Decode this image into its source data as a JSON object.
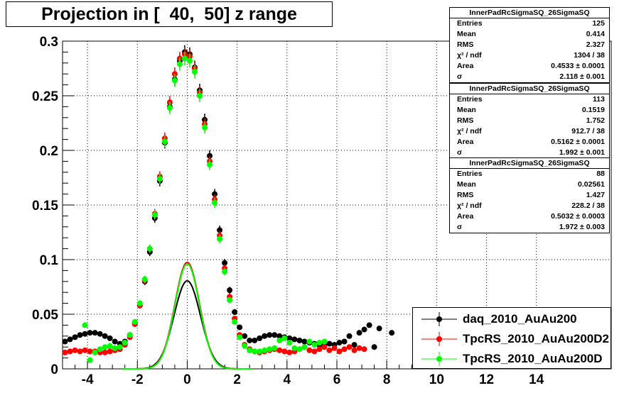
{
  "title": "Projection in [  40,  50] z range",
  "chart_data": {
    "type": "scatter",
    "title": "Projection in [  40,  50] z range",
    "xlim": [
      -5,
      17
    ],
    "ylim": [
      0,
      0.3
    ],
    "x_ticks": [
      "-4",
      "-2",
      "0",
      "2",
      "4",
      "6",
      "8",
      "10",
      "12",
      "14"
    ],
    "y_ticks": [
      "0",
      "0.05",
      "0.1",
      "0.15",
      "0.2",
      "0.25",
      "0.3"
    ],
    "grid": true,
    "legend_position": "bottom-right",
    "series": [
      {
        "name": "daq_2010_AuAu200",
        "color": "#000000",
        "x": [
          -4.9,
          -4.7,
          -4.5,
          -4.3,
          -4.1,
          -3.9,
          -3.7,
          -3.5,
          -3.3,
          -3.1,
          -2.9,
          -2.7,
          -2.5,
          -2.3,
          -2.1,
          -1.9,
          -1.7,
          -1.5,
          -1.3,
          -1.1,
          -0.9,
          -0.7,
          -0.5,
          -0.3,
          -0.1,
          0.1,
          0.3,
          0.5,
          0.7,
          0.9,
          1.1,
          1.3,
          1.5,
          1.7,
          1.9,
          2.1,
          2.3,
          2.5,
          2.7,
          2.9,
          3.1,
          3.3,
          3.5,
          3.7,
          3.9,
          4.1,
          4.3,
          4.5,
          4.7,
          4.9,
          5.1,
          5.3,
          5.5,
          5.7,
          5.9,
          6.1,
          6.3,
          6.5,
          6.7,
          6.9,
          7.1,
          7.3,
          7.5,
          7.7,
          8.2
        ],
        "y": [
          0.025,
          0.027,
          0.029,
          0.031,
          0.032,
          0.033,
          0.033,
          0.032,
          0.03,
          0.028,
          0.025,
          0.023,
          0.025,
          0.031,
          0.042,
          0.058,
          0.08,
          0.107,
          0.138,
          0.172,
          0.207,
          0.24,
          0.265,
          0.282,
          0.29,
          0.288,
          0.276,
          0.255,
          0.228,
          0.195,
          0.16,
          0.127,
          0.097,
          0.072,
          0.052,
          0.038,
          0.03,
          0.026,
          0.026,
          0.028,
          0.03,
          0.031,
          0.031,
          0.03,
          0.029,
          0.028,
          0.027,
          0.026,
          0.025,
          0.024,
          0.023,
          0.022,
          0.022,
          0.023,
          0.022,
          0.024,
          0.025,
          0.03,
          0.022,
          0.033,
          0.036,
          0.04,
          0.02,
          0.037,
          0.033
        ]
      },
      {
        "name": "TpcRS_2010_AuAu200D2",
        "color": "#ff0000",
        "x": [
          -4.9,
          -4.7,
          -4.5,
          -4.3,
          -4.1,
          -3.9,
          -3.7,
          -3.5,
          -3.3,
          -3.1,
          -2.9,
          -2.7,
          -2.5,
          -2.3,
          -2.1,
          -1.9,
          -1.7,
          -1.5,
          -1.3,
          -1.1,
          -0.9,
          -0.7,
          -0.5,
          -0.3,
          -0.1,
          0.1,
          0.3,
          0.5,
          0.7,
          0.9,
          1.1,
          1.3,
          1.5,
          1.7,
          1.9,
          2.1,
          2.3,
          2.5,
          2.7,
          2.9,
          3.1,
          3.3,
          3.5,
          3.7,
          3.9,
          4.1,
          4.3,
          4.5,
          4.7,
          4.9,
          5.1,
          5.3,
          5.5,
          5.7,
          5.9,
          6.1,
          6.3,
          6.5,
          6.7,
          6.9,
          7.1
        ],
        "y": [
          0.015,
          0.016,
          0.017,
          0.016,
          0.017,
          0.016,
          0.016,
          0.015,
          0.015,
          0.016,
          0.017,
          0.018,
          0.022,
          0.029,
          0.041,
          0.058,
          0.081,
          0.11,
          0.142,
          0.176,
          0.211,
          0.244,
          0.27,
          0.284,
          0.288,
          0.286,
          0.275,
          0.253,
          0.224,
          0.19,
          0.155,
          0.122,
          0.092,
          0.066,
          0.046,
          0.031,
          0.022,
          0.018,
          0.016,
          0.015,
          0.016,
          0.017,
          0.018,
          0.017,
          0.016,
          0.015,
          0.016,
          0.018,
          0.02,
          0.017,
          0.016,
          0.018,
          0.02,
          0.017,
          0.019,
          0.016,
          0.018,
          0.02,
          0.017,
          0.019,
          0.018
        ]
      },
      {
        "name": "TpcRS_2010_AuAu200D",
        "color": "#00ff00",
        "x": [
          -4.1,
          -3.9,
          -3.7,
          -3.5,
          -3.3,
          -3.1,
          -2.9,
          -2.7,
          -2.5,
          -2.3,
          -2.1,
          -1.9,
          -1.7,
          -1.5,
          -1.3,
          -1.1,
          -0.9,
          -0.7,
          -0.5,
          -0.3,
          -0.1,
          0.1,
          0.3,
          0.5,
          0.7,
          0.9,
          1.1,
          1.3,
          1.5,
          1.7,
          1.9,
          2.1,
          2.3,
          2.5,
          2.7,
          2.9,
          3.1,
          3.3,
          3.5,
          3.7,
          3.9,
          4.1,
          4.3,
          4.5,
          4.7,
          4.9,
          5.1,
          5.3,
          5.5
        ],
        "y": [
          0.04,
          0.008,
          0.015,
          0.018,
          0.02,
          0.021,
          0.019,
          0.02,
          0.024,
          0.031,
          0.043,
          0.06,
          0.082,
          0.11,
          0.141,
          0.174,
          0.208,
          0.239,
          0.264,
          0.279,
          0.284,
          0.282,
          0.272,
          0.25,
          0.221,
          0.187,
          0.152,
          0.119,
          0.089,
          0.063,
          0.043,
          0.029,
          0.021,
          0.017,
          0.016,
          0.016,
          0.017,
          0.018,
          0.019,
          0.026,
          0.028,
          0.024,
          0.019,
          0.018,
          0.02,
          0.025,
          0.022,
          0.024,
          0.025
        ]
      }
    ],
    "fits": [
      {
        "series": "daq_2010_AuAu200",
        "color": "#000000",
        "area": 0.4533,
        "sigma": 2.118
      },
      {
        "series": "TpcRS_2010_AuAu200D2",
        "color": "#ff0000",
        "area": 0.5162,
        "sigma": 1.992
      },
      {
        "series": "TpcRS_2010_AuAu200D",
        "color": "#00ff00",
        "area": 0.5032,
        "sigma": 1.972
      }
    ]
  },
  "stats": [
    {
      "title": "InnerPadRcSigmaSQ_26SigmaSQ",
      "rows": [
        {
          "k": "Entries",
          "v": "125"
        },
        {
          "k": "Mean",
          "v": "0.414"
        },
        {
          "k": "RMS",
          "v": "2.327"
        },
        {
          "k": "χ² / ndf",
          "v": "1304 / 38"
        },
        {
          "k": "Area",
          "v": "0.4533 ± 0.0001"
        },
        {
          "k": "σ",
          "v": "2.118 ± 0.001"
        }
      ]
    },
    {
      "title": "InnerPadRcSigmaSQ_26SigmaSQ",
      "rows": [
        {
          "k": "Entries",
          "v": "113"
        },
        {
          "k": "Mean",
          "v": "0.1519"
        },
        {
          "k": "RMS",
          "v": "1.752"
        },
        {
          "k": "χ² / ndf",
          "v": "912.7 / 38"
        },
        {
          "k": "Area",
          "v": "0.5162 ± 0.0001"
        },
        {
          "k": "σ",
          "v": "1.992 ± 0.001"
        }
      ]
    },
    {
      "title": "InnerPadRcSigmaSQ_26SigmaSQ",
      "rows": [
        {
          "k": "Entries",
          "v": "88"
        },
        {
          "k": "Mean",
          "v": "0.02561"
        },
        {
          "k": "RMS",
          "v": "1.427"
        },
        {
          "k": "χ² / ndf",
          "v": "228.2 / 38"
        },
        {
          "k": "Area",
          "v": "0.5032 ± 0.0003"
        },
        {
          "k": "σ",
          "v": "1.972 ± 0.003"
        }
      ]
    }
  ],
  "legend": [
    {
      "label": "daq_2010_AuAu200",
      "color": "#000000"
    },
    {
      "label": "TpcRS_2010_AuAu200D2",
      "color": "#ff0000"
    },
    {
      "label": "TpcRS_2010_AuAu200D",
      "color": "#00ff00"
    }
  ]
}
